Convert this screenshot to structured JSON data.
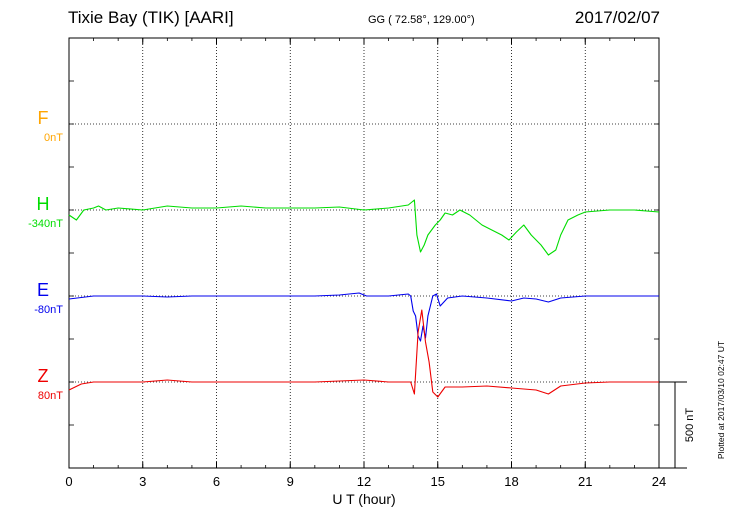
{
  "header": {
    "station": "Tixie Bay (TIK)  [AARI]",
    "coords": "GG ( 72.58°, 129.00°)",
    "date": "2017/02/07"
  },
  "plotted_note": "Plotted at 2017/03/10 02:47 UT",
  "chart_data": {
    "type": "line",
    "xlabel": "U T (hour)",
    "xlim": [
      0,
      24
    ],
    "xticks": [
      0,
      3,
      6,
      9,
      12,
      15,
      18,
      21,
      24
    ],
    "scale_bar": "500 nT",
    "series": [
      {
        "name": "F",
        "baseline_label": "0nT",
        "color": "#ffa500",
        "points": []
      },
      {
        "name": "H",
        "baseline_label": "-340nT",
        "color": "#00dd00",
        "points": [
          [
            0,
            5
          ],
          [
            0.3,
            10
          ],
          [
            0.6,
            0
          ],
          [
            1.0,
            -2
          ],
          [
            1.2,
            -4
          ],
          [
            1.5,
            0
          ],
          [
            2,
            -2
          ],
          [
            3,
            0
          ],
          [
            4,
            -4
          ],
          [
            5,
            -2
          ],
          [
            6,
            -2
          ],
          [
            7,
            -4
          ],
          [
            8,
            -2
          ],
          [
            9,
            -2
          ],
          [
            10,
            -2
          ],
          [
            11,
            -3
          ],
          [
            12,
            0
          ],
          [
            13,
            -2
          ],
          [
            13.8,
            -5
          ],
          [
            14.05,
            -10
          ],
          [
            14.15,
            25
          ],
          [
            14.3,
            42
          ],
          [
            14.45,
            35
          ],
          [
            14.6,
            25
          ],
          [
            14.9,
            15
          ],
          [
            15.1,
            10
          ],
          [
            15.3,
            3
          ],
          [
            15.6,
            5
          ],
          [
            15.9,
            0
          ],
          [
            16.3,
            5
          ],
          [
            16.8,
            15
          ],
          [
            17.2,
            20
          ],
          [
            17.6,
            25
          ],
          [
            17.9,
            30
          ],
          [
            18.2,
            22
          ],
          [
            18.5,
            15
          ],
          [
            18.8,
            25
          ],
          [
            19.2,
            35
          ],
          [
            19.5,
            45
          ],
          [
            19.8,
            40
          ],
          [
            20.0,
            25
          ],
          [
            20.3,
            10
          ],
          [
            20.7,
            5
          ],
          [
            21,
            2
          ],
          [
            22,
            0
          ],
          [
            23,
            0
          ],
          [
            24,
            2
          ]
        ]
      },
      {
        "name": "E",
        "baseline_label": "-80nT",
        "color": "#0000ee",
        "points": [
          [
            0,
            3
          ],
          [
            1,
            0
          ],
          [
            2,
            0
          ],
          [
            3,
            0
          ],
          [
            4,
            1
          ],
          [
            5,
            0
          ],
          [
            6,
            0
          ],
          [
            7,
            0
          ],
          [
            8,
            0
          ],
          [
            9,
            0
          ],
          [
            10,
            0
          ],
          [
            11,
            -1
          ],
          [
            11.8,
            -3
          ],
          [
            12.1,
            0
          ],
          [
            13,
            0
          ],
          [
            13.8,
            -2
          ],
          [
            13.9,
            0
          ],
          [
            14.0,
            15
          ],
          [
            14.1,
            20
          ],
          [
            14.2,
            40
          ],
          [
            14.3,
            45
          ],
          [
            14.4,
            30
          ],
          [
            14.5,
            42
          ],
          [
            14.6,
            20
          ],
          [
            14.8,
            0
          ],
          [
            14.95,
            -2
          ],
          [
            15.1,
            10
          ],
          [
            15.4,
            2
          ],
          [
            16,
            0
          ],
          [
            17,
            2
          ],
          [
            18,
            5
          ],
          [
            18.5,
            2
          ],
          [
            19,
            3
          ],
          [
            19.5,
            6
          ],
          [
            20,
            2
          ],
          [
            21,
            0
          ],
          [
            22,
            0
          ],
          [
            23,
            0
          ],
          [
            24,
            0
          ]
        ]
      },
      {
        "name": "Z",
        "baseline_label": "80nT",
        "color": "#ee0000",
        "points": [
          [
            0,
            8
          ],
          [
            0.5,
            2
          ],
          [
            1,
            0
          ],
          [
            2,
            0
          ],
          [
            3,
            0
          ],
          [
            4,
            -2
          ],
          [
            5,
            0
          ],
          [
            6,
            0
          ],
          [
            7,
            0
          ],
          [
            8,
            0
          ],
          [
            9,
            0
          ],
          [
            10,
            0
          ],
          [
            11,
            -1
          ],
          [
            12,
            -2
          ],
          [
            13,
            0
          ],
          [
            13.9,
            0
          ],
          [
            14.05,
            12
          ],
          [
            14.2,
            -50
          ],
          [
            14.35,
            -72
          ],
          [
            14.5,
            -40
          ],
          [
            14.65,
            -20
          ],
          [
            14.8,
            10
          ],
          [
            15.0,
            15
          ],
          [
            15.3,
            5
          ],
          [
            16,
            5
          ],
          [
            17,
            4
          ],
          [
            18,
            6
          ],
          [
            19,
            8
          ],
          [
            19.5,
            12
          ],
          [
            20,
            4
          ],
          [
            21,
            1
          ],
          [
            22,
            0
          ],
          [
            23,
            0
          ],
          [
            24,
            0
          ]
        ]
      }
    ]
  }
}
